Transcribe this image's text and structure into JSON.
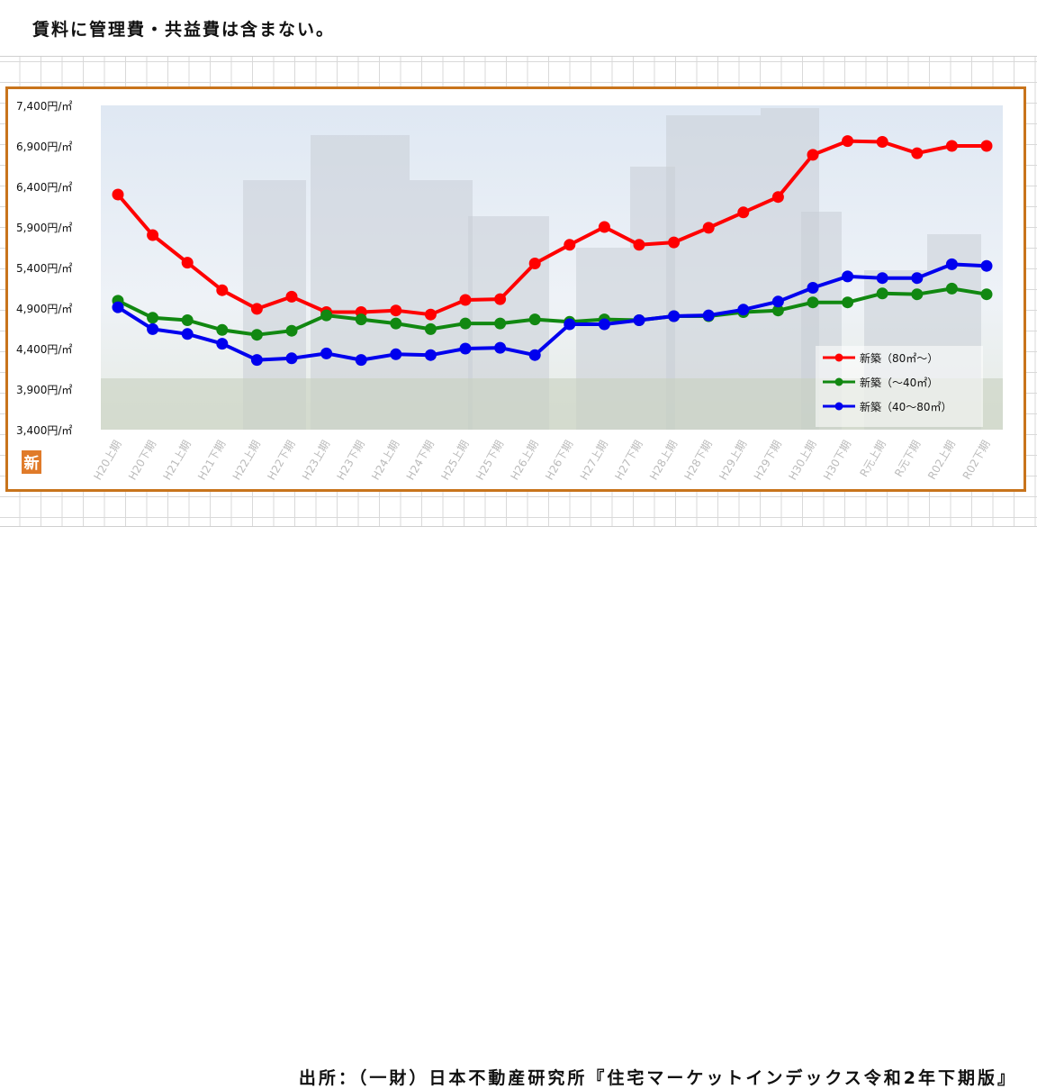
{
  "note": "賃料に管理費・共益費は含まない。",
  "source": "出所：（一財）日本不動産研究所『住宅マーケットインデックス令和2年下期版』",
  "badge": "新",
  "chart_data": {
    "type": "line",
    "ylim": [
      3400,
      7400
    ],
    "yticks": [
      3400,
      3900,
      4400,
      4900,
      5400,
      5900,
      6400,
      6900,
      7400
    ],
    "ytick_labels": [
      "3,400円/㎡",
      "3,900円/㎡",
      "4,400円/㎡",
      "4,900円/㎡",
      "5,400円/㎡",
      "5,900円/㎡",
      "6,400円/㎡",
      "6,900円/㎡",
      "7,400円/㎡"
    ],
    "categories": [
      "H20上期",
      "H20下期",
      "H21上期",
      "H21下期",
      "H22上期",
      "H22下期",
      "H23上期",
      "H23下期",
      "H24上期",
      "H24下期",
      "H25上期",
      "H25下期",
      "H26上期",
      "H26下期",
      "H27上期",
      "H27下期",
      "H28上期",
      "H28下期",
      "H29上期",
      "H29下期",
      "H30上期",
      "H30下期",
      "R元上期",
      "R元下期",
      "R02上期",
      "R02下期"
    ],
    "legend_position": "bottom-right",
    "grid": false,
    "series": [
      {
        "name": "新築（80㎡～）",
        "color": "#ff0000",
        "values": [
          6300,
          5800,
          5460,
          5120,
          4890,
          5040,
          4850,
          4850,
          4870,
          4820,
          5000,
          5010,
          5450,
          5680,
          5900,
          5680,
          5710,
          5890,
          6080,
          6270,
          6790,
          6960,
          6950,
          6810,
          6900,
          6900
        ]
      },
      {
        "name": "新築（～40㎡）",
        "color": "#118811",
        "values": [
          4990,
          4780,
          4750,
          4630,
          4570,
          4620,
          4810,
          4760,
          4710,
          4640,
          4710,
          4710,
          4760,
          4730,
          4760,
          4750,
          4800,
          4800,
          4850,
          4870,
          4970,
          4970,
          5080,
          5070,
          5140,
          5070
        ]
      },
      {
        "name": "新築（40～80㎡）",
        "color": "#0000ee",
        "values": [
          4910,
          4640,
          4580,
          4460,
          4260,
          4280,
          4340,
          4260,
          4330,
          4320,
          4400,
          4410,
          4320,
          4700,
          4700,
          4750,
          4800,
          4810,
          4880,
          4980,
          5150,
          5290,
          5270,
          5270,
          5440,
          5420
        ]
      }
    ]
  }
}
